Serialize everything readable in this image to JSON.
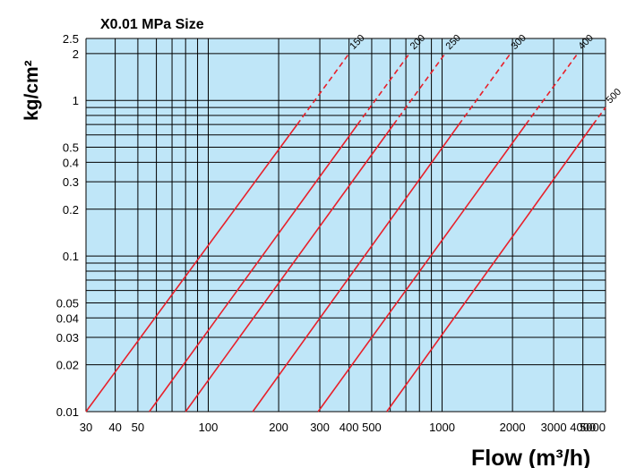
{
  "chart_data": {
    "type": "line",
    "title": "X0.01 MPa  Size",
    "ylabel": "kg/cm²",
    "xlabel": "Flow (m³/h)",
    "xscale": "log",
    "yscale": "log",
    "xlim": [
      30,
      5000
    ],
    "ylim": [
      0.01,
      2.5
    ],
    "grid": true,
    "x_ticks": [
      {
        "value": 30,
        "label": "30"
      },
      {
        "value": 40,
        "label": "40"
      },
      {
        "value": 50,
        "label": "50"
      },
      {
        "value": 100,
        "label": "100"
      },
      {
        "value": 200,
        "label": "200"
      },
      {
        "value": 300,
        "label": "300"
      },
      {
        "value": 400,
        "label": "400"
      },
      {
        "value": 500,
        "label": "500"
      },
      {
        "value": 1000,
        "label": "1000"
      },
      {
        "value": 2000,
        "label": "2000"
      },
      {
        "value": 3000,
        "label": "3000"
      },
      {
        "value": 4000,
        "label": "4000"
      },
      {
        "value": 5000,
        "label": "5000"
      }
    ],
    "y_ticks": [
      {
        "value": 0.01,
        "label": "0.01"
      },
      {
        "value": 0.02,
        "label": "0.02"
      },
      {
        "value": 0.03,
        "label": "0.03"
      },
      {
        "value": 0.04,
        "label": "0.04"
      },
      {
        "value": 0.05,
        "label": "0.05"
      },
      {
        "value": 0.1,
        "label": "0.1"
      },
      {
        "value": 0.2,
        "label": "0.2"
      },
      {
        "value": 0.3,
        "label": "0.3"
      },
      {
        "value": 0.4,
        "label": "0.4"
      },
      {
        "value": 0.5,
        "label": "0.5"
      },
      {
        "value": 1,
        "label": "1"
      },
      {
        "value": 2,
        "label": "2"
      },
      {
        "value": 2.5,
        "label": "2.5"
      }
    ],
    "series": [
      {
        "name": "150",
        "solid": [
          [
            30,
            0.01
          ],
          [
            240,
            0.7
          ]
        ],
        "dashed": [
          [
            240,
            0.7
          ],
          [
            400,
            2.0
          ]
        ]
      },
      {
        "name": "200",
        "solid": [
          [
            56,
            0.01
          ],
          [
            435,
            0.7
          ]
        ],
        "dashed": [
          [
            435,
            0.7
          ],
          [
            725,
            2.0
          ]
        ]
      },
      {
        "name": "250",
        "solid": [
          [
            80,
            0.01
          ],
          [
            620,
            0.7
          ]
        ],
        "dashed": [
          [
            620,
            0.7
          ],
          [
            1030,
            2.0
          ]
        ]
      },
      {
        "name": "300",
        "solid": [
          [
            155,
            0.01
          ],
          [
            1180,
            0.7
          ]
        ],
        "dashed": [
          [
            1180,
            0.7
          ],
          [
            1960,
            2.0
          ]
        ]
      },
      {
        "name": "400",
        "solid": [
          [
            295,
            0.01
          ],
          [
            2280,
            0.7
          ]
        ],
        "dashed": [
          [
            2280,
            0.7
          ],
          [
            3800,
            2.0
          ]
        ]
      },
      {
        "name": "500",
        "solid": [
          [
            580,
            0.01
          ],
          [
            4420,
            0.7
          ]
        ],
        "dashed": [
          [
            4420,
            0.7
          ],
          [
            5000,
            0.9
          ]
        ]
      }
    ],
    "colors": {
      "plot_background": "#bfe6f8",
      "grid": "#000000",
      "series": "#e8202a"
    }
  }
}
